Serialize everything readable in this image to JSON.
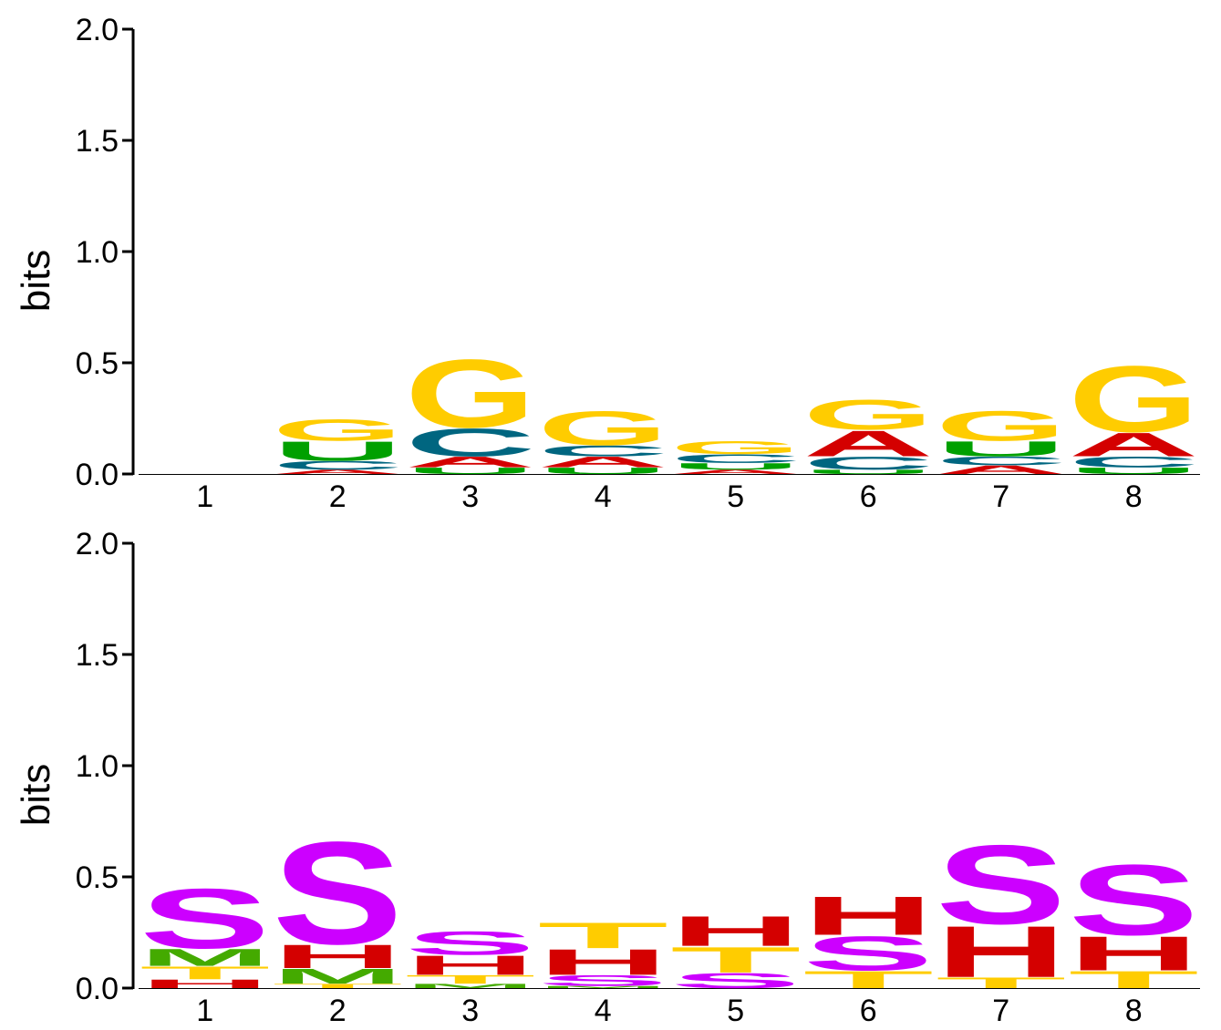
{
  "colors": {
    "A": "#d40000",
    "C": "#006680",
    "G": "#ffcc00",
    "U": "#00a000",
    "S": "#cc00ff",
    "H": "#d40000",
    "M": "#44aa00",
    "T": "#ffcc00"
  },
  "chart_data": [
    {
      "type": "sequence-logo",
      "ylabel": "bits",
      "ylim": [
        0,
        2
      ],
      "yticks": [
        "0.0",
        "0.5",
        "1.0",
        "1.5",
        "2.0"
      ],
      "positions": [
        "1",
        "2",
        "3",
        "4",
        "5",
        "6",
        "7",
        "8"
      ],
      "stacks": [
        [],
        [
          {
            "letter": "A",
            "height": 0.02
          },
          {
            "letter": "C",
            "height": 0.04
          },
          {
            "letter": "U",
            "height": 0.09
          },
          {
            "letter": "G",
            "height": 0.1
          }
        ],
        [
          {
            "letter": "U",
            "height": 0.03
          },
          {
            "letter": "A",
            "height": 0.05
          },
          {
            "letter": "C",
            "height": 0.13
          },
          {
            "letter": "G",
            "height": 0.32
          }
        ],
        [
          {
            "letter": "U",
            "height": 0.03
          },
          {
            "letter": "A",
            "height": 0.05
          },
          {
            "letter": "C",
            "height": 0.05
          },
          {
            "letter": "G",
            "height": 0.16
          }
        ],
        [
          {
            "letter": "A",
            "height": 0.02
          },
          {
            "letter": "U",
            "height": 0.03
          },
          {
            "letter": "C",
            "height": 0.04
          },
          {
            "letter": "G",
            "height": 0.06
          }
        ],
        [
          {
            "letter": "U",
            "height": 0.02
          },
          {
            "letter": "C",
            "height": 0.06
          },
          {
            "letter": "A",
            "height": 0.12
          },
          {
            "letter": "G",
            "height": 0.14
          }
        ],
        [
          {
            "letter": "A",
            "height": 0.04
          },
          {
            "letter": "C",
            "height": 0.04
          },
          {
            "letter": "U",
            "height": 0.07
          },
          {
            "letter": "G",
            "height": 0.14
          }
        ],
        [
          {
            "letter": "U",
            "height": 0.03
          },
          {
            "letter": "C",
            "height": 0.05
          },
          {
            "letter": "A",
            "height": 0.11
          },
          {
            "letter": "G",
            "height": 0.31
          }
        ]
      ]
    },
    {
      "type": "sequence-logo",
      "ylabel": "bits",
      "ylim": [
        0,
        2
      ],
      "yticks": [
        "0.0",
        "0.5",
        "1.0",
        "1.5",
        "2.0"
      ],
      "positions": [
        "1",
        "2",
        "3",
        "4",
        "5",
        "6",
        "7",
        "8"
      ],
      "stacks": [
        [
          {
            "letter": "H",
            "height": 0.04
          },
          {
            "letter": "T",
            "height": 0.06
          },
          {
            "letter": "M",
            "height": 0.08
          },
          {
            "letter": "S",
            "height": 0.28
          }
        ],
        [
          {
            "letter": "T",
            "height": 0.02
          },
          {
            "letter": "M",
            "height": 0.07
          },
          {
            "letter": "H",
            "height": 0.11
          },
          {
            "letter": "S",
            "height": 0.48
          }
        ],
        [
          {
            "letter": "M",
            "height": 0.02
          },
          {
            "letter": "T",
            "height": 0.04
          },
          {
            "letter": "H",
            "height": 0.09
          },
          {
            "letter": "S",
            "height": 0.11
          }
        ],
        [
          {
            "letter": "M",
            "height": 0.01
          },
          {
            "letter": "S",
            "height": 0.05
          },
          {
            "letter": "H",
            "height": 0.12
          },
          {
            "letter": "T",
            "height": 0.12
          }
        ],
        [
          {
            "letter": "S",
            "height": 0.07
          },
          {
            "letter": "T",
            "height": 0.12
          },
          {
            "letter": "H",
            "height": 0.14
          }
        ],
        [
          {
            "letter": "T",
            "height": 0.08
          },
          {
            "letter": "S",
            "height": 0.16
          },
          {
            "letter": "H",
            "height": 0.18
          }
        ],
        [
          {
            "letter": "T",
            "height": 0.05
          },
          {
            "letter": "H",
            "height": 0.24
          },
          {
            "letter": "S",
            "height": 0.37
          }
        ],
        [
          {
            "letter": "T",
            "height": 0.08
          },
          {
            "letter": "H",
            "height": 0.16
          },
          {
            "letter": "S",
            "height": 0.33
          }
        ]
      ]
    }
  ]
}
